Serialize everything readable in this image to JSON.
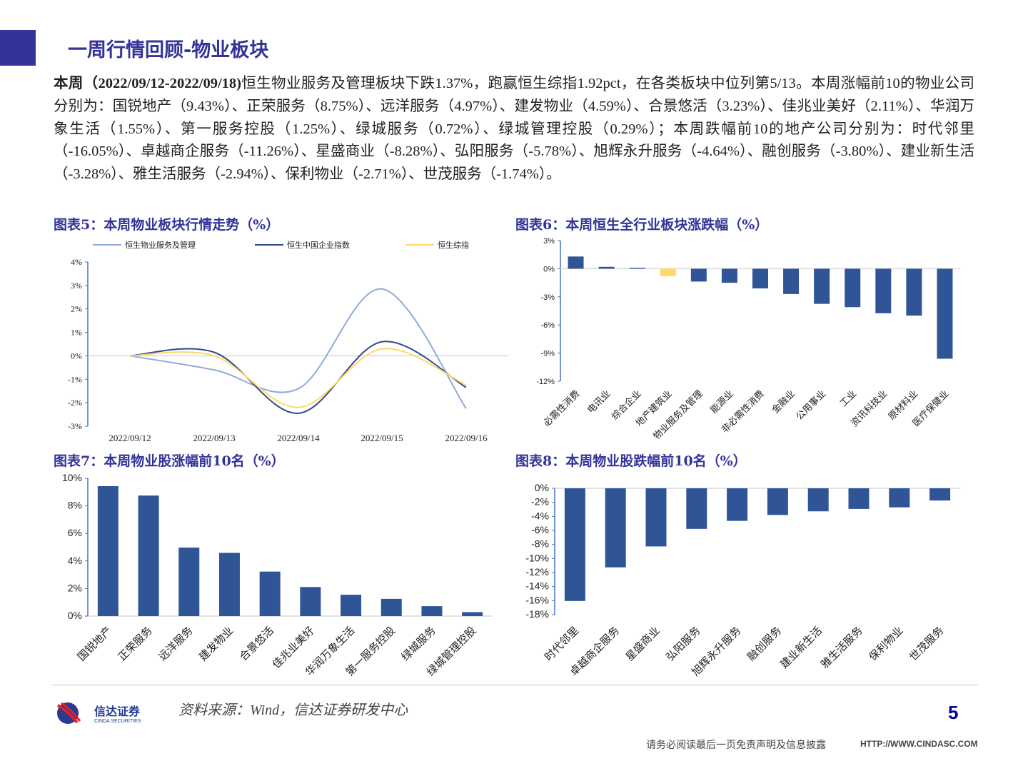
{
  "header": {
    "title": "一周行情回顾-物业板块",
    "accent": "#333399"
  },
  "paragraph": {
    "bold": "本周（2022/09/12-2022/09/18)",
    "text": "恒生物业服务及管理板块下跌1.37%，跑赢恒生综指1.92pct，在各类板块中位列第5/13。本周涨幅前10的物业公司分别为：国锐地产（9.43%）、正荣服务（8.75%）、远洋服务（4.97%）、建发物业（4.59%）、合景悠活（3.23%）、佳兆业美好（2.11%）、华润万象生活（1.55%）、第一服务控股（1.25%）、绿城服务（0.72%）、绿城管理控股（0.29%）；本周跌幅前10的地产公司分别为：时代邻里（-16.05%）、卓越商企服务（-11.26%）、星盛商业（-8.28%）、弘阳服务（-5.78%）、旭辉永升服务（-4.64%）、融创服务（-3.80%）、建业新生活（-3.28%）、雅生活服务（-2.94%）、保利物业（-2.71%）、世茂服务（-1.74%）。"
  },
  "chart_titles": {
    "c5": "图表5：本周物业板块行情走势（%）",
    "c6": "图表6：本周恒生全行业板块涨跌幅（%）",
    "c7": "图表7：本周物业股涨幅前10名（%）",
    "c8": "图表8：本周物业股跌幅前10名（%）"
  },
  "chart_data": [
    {
      "id": "c5",
      "type": "line",
      "categories": [
        "2022/09/12",
        "2022/09/13",
        "2022/09/14",
        "2022/09/15",
        "2022/09/16"
      ],
      "ylim": [
        -3,
        4
      ],
      "yticks": [
        4,
        3,
        2,
        1,
        0,
        -1,
        -2,
        -3
      ],
      "legend": "top",
      "series": [
        {
          "name": "恒生物业服务及管理",
          "color": "#8faadc",
          "values": [
            0,
            -0.6,
            -1.4,
            2.85,
            -2.25
          ]
        },
        {
          "name": "恒生中国企业指数",
          "color": "#2f4b8f",
          "values": [
            0,
            0.15,
            -2.45,
            0.6,
            -1.35
          ]
        },
        {
          "name": "恒生综指",
          "color": "#ffd966",
          "values": [
            0,
            0.0,
            -2.2,
            0.3,
            -1.25
          ]
        }
      ]
    },
    {
      "id": "c6",
      "type": "bar",
      "categories": [
        "必需性消费",
        "电讯业",
        "综合企业",
        "地产建筑业",
        "物业服务及管理",
        "能源业",
        "非必需性消费",
        "金融业",
        "公用事业",
        "工业",
        "资讯科技业",
        "原材料业",
        "医疗保健业"
      ],
      "values": [
        1.3,
        0.2,
        0.1,
        -0.8,
        -1.37,
        -1.5,
        -2.1,
        -2.7,
        -3.75,
        -4.1,
        -4.75,
        -5.0,
        -9.6
      ],
      "highlight_index": 3,
      "highlight_color": "#ffd966",
      "color": "#2f5597",
      "ylim": [
        -12,
        3
      ],
      "yticks": [
        3,
        0,
        -3,
        -6,
        -9,
        -12
      ]
    },
    {
      "id": "c7",
      "type": "bar",
      "categories": [
        "国锐地产",
        "正荣服务",
        "远洋服务",
        "建发物业",
        "合景悠活",
        "佳兆业美好",
        "华润万象生活",
        "第一服务控股",
        "绿城服务",
        "绿城管理控股"
      ],
      "values": [
        9.43,
        8.75,
        4.97,
        4.59,
        3.23,
        2.11,
        1.55,
        1.25,
        0.72,
        0.29
      ],
      "color": "#2f5597",
      "ylim": [
        0,
        10
      ],
      "yticks": [
        10,
        8,
        6,
        4,
        2,
        0
      ]
    },
    {
      "id": "c8",
      "type": "bar",
      "categories": [
        "时代邻里",
        "卓越商企服务",
        "星盛商业",
        "弘阳服务",
        "旭辉永升服务",
        "融创服务",
        "建业新生活",
        "雅生活服务",
        "保利物业",
        "世茂服务"
      ],
      "values": [
        -16.05,
        -11.26,
        -8.28,
        -5.78,
        -4.64,
        -3.8,
        -3.28,
        -2.94,
        -2.71,
        -1.74
      ],
      "color": "#2f5597",
      "ylim": [
        -18,
        0
      ],
      "yticks": [
        0,
        -2,
        -4,
        -6,
        -8,
        -10,
        -12,
        -14,
        -16,
        -18
      ]
    }
  ],
  "footer": {
    "logo_cn": "信达证券",
    "logo_en": "CINDA SECURITIES",
    "source": "资料来源：Wind，信达证券研发中心",
    "page": "5",
    "disclaimer": "请务必阅读最后一页免责声明及信息披露",
    "url": "HTTP://WWW.CINDASC.COM"
  }
}
